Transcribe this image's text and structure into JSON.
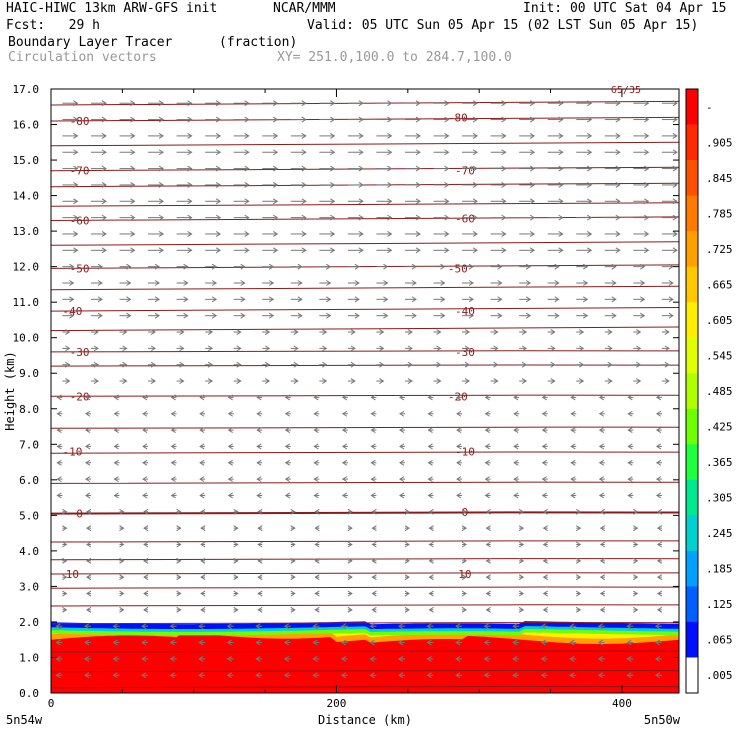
{
  "header": {
    "model": "HAIC-HIWC 13km ARW-GFS init",
    "org": "NCAR/MMM",
    "init": "Init: 00 UTC Sat 04 Apr 15",
    "fcst": "Fcst:   29 h",
    "valid": "Valid: 05 UTC Sun 05 Apr 15 (02 LST Sun 05 Apr 15)",
    "field": "Boundary Layer Tracer",
    "field_units": "(fraction)",
    "vectors": "Circulation vectors",
    "xy": "XY= 251.0,100.0 to 284.7,100.0"
  },
  "chart_data": {
    "type": "heatmap",
    "xlabel": "Distance (km)",
    "ylabel": "Height (km)",
    "xlim": [
      0,
      440
    ],
    "ylim": [
      0,
      17
    ],
    "x_ticks": [
      0,
      200,
      400
    ],
    "y_ticks": [
      "0.0",
      "1.0",
      "2.0",
      "3.0",
      "4.0",
      "5.0",
      "6.0",
      "7.0",
      "8.0",
      "9.0",
      "10.0",
      "11.0",
      "12.0",
      "13.0",
      "14.0",
      "15.0",
      "16.0",
      "17.0"
    ],
    "x_left_label": "5n54w",
    "x_right_label": "5n50w",
    "corner_label": "65/35",
    "colorbar": {
      "labels": [
        "-",
        ".905",
        ".845",
        ".785",
        ".725",
        ".665",
        ".605",
        ".545",
        ".485",
        ".425",
        ".365",
        ".305",
        ".245",
        ".185",
        ".125",
        ".065",
        ".005"
      ],
      "colors": [
        "#ff0000",
        "#ff2a00",
        "#ff5000",
        "#ff7a00",
        "#ffa000",
        "#ffc800",
        "#ffee00",
        "#e0ff00",
        "#b0ff00",
        "#70ff00",
        "#20ff40",
        "#00e890",
        "#00d0d0",
        "#00a0ff",
        "#0060ff",
        "#0010ff",
        "#ffffff"
      ]
    },
    "contour_labels": [
      {
        "x": 20,
        "y": 16.1,
        "label": "-80"
      },
      {
        "x": 285,
        "y": 16.2,
        "label": "-80"
      },
      {
        "x": 20,
        "y": 14.7,
        "label": "-70"
      },
      {
        "x": 290,
        "y": 14.7,
        "label": "-70"
      },
      {
        "x": 20,
        "y": 13.3,
        "label": "-60"
      },
      {
        "x": 290,
        "y": 13.35,
        "label": "-60"
      },
      {
        "x": 20,
        "y": 11.95,
        "label": "-50"
      },
      {
        "x": 285,
        "y": 11.95,
        "label": "-50"
      },
      {
        "x": 15,
        "y": 10.75,
        "label": "-40"
      },
      {
        "x": 290,
        "y": 10.75,
        "label": "-40"
      },
      {
        "x": 20,
        "y": 9.6,
        "label": "-30"
      },
      {
        "x": 290,
        "y": 9.6,
        "label": "-30"
      },
      {
        "x": 20,
        "y": 8.35,
        "label": "-20"
      },
      {
        "x": 285,
        "y": 8.35,
        "label": "-20"
      },
      {
        "x": 15,
        "y": 6.8,
        "label": "-10"
      },
      {
        "x": 290,
        "y": 6.8,
        "label": "-10"
      },
      {
        "x": 20,
        "y": 5.05,
        "label": "0"
      },
      {
        "x": 290,
        "y": 5.1,
        "label": "0"
      },
      {
        "x": 15,
        "y": 3.35,
        "label": "10"
      },
      {
        "x": 290,
        "y": 3.35,
        "label": "10"
      }
    ],
    "colors": {
      "contour": "#8b1a1a",
      "vector": "#777777"
    }
  }
}
